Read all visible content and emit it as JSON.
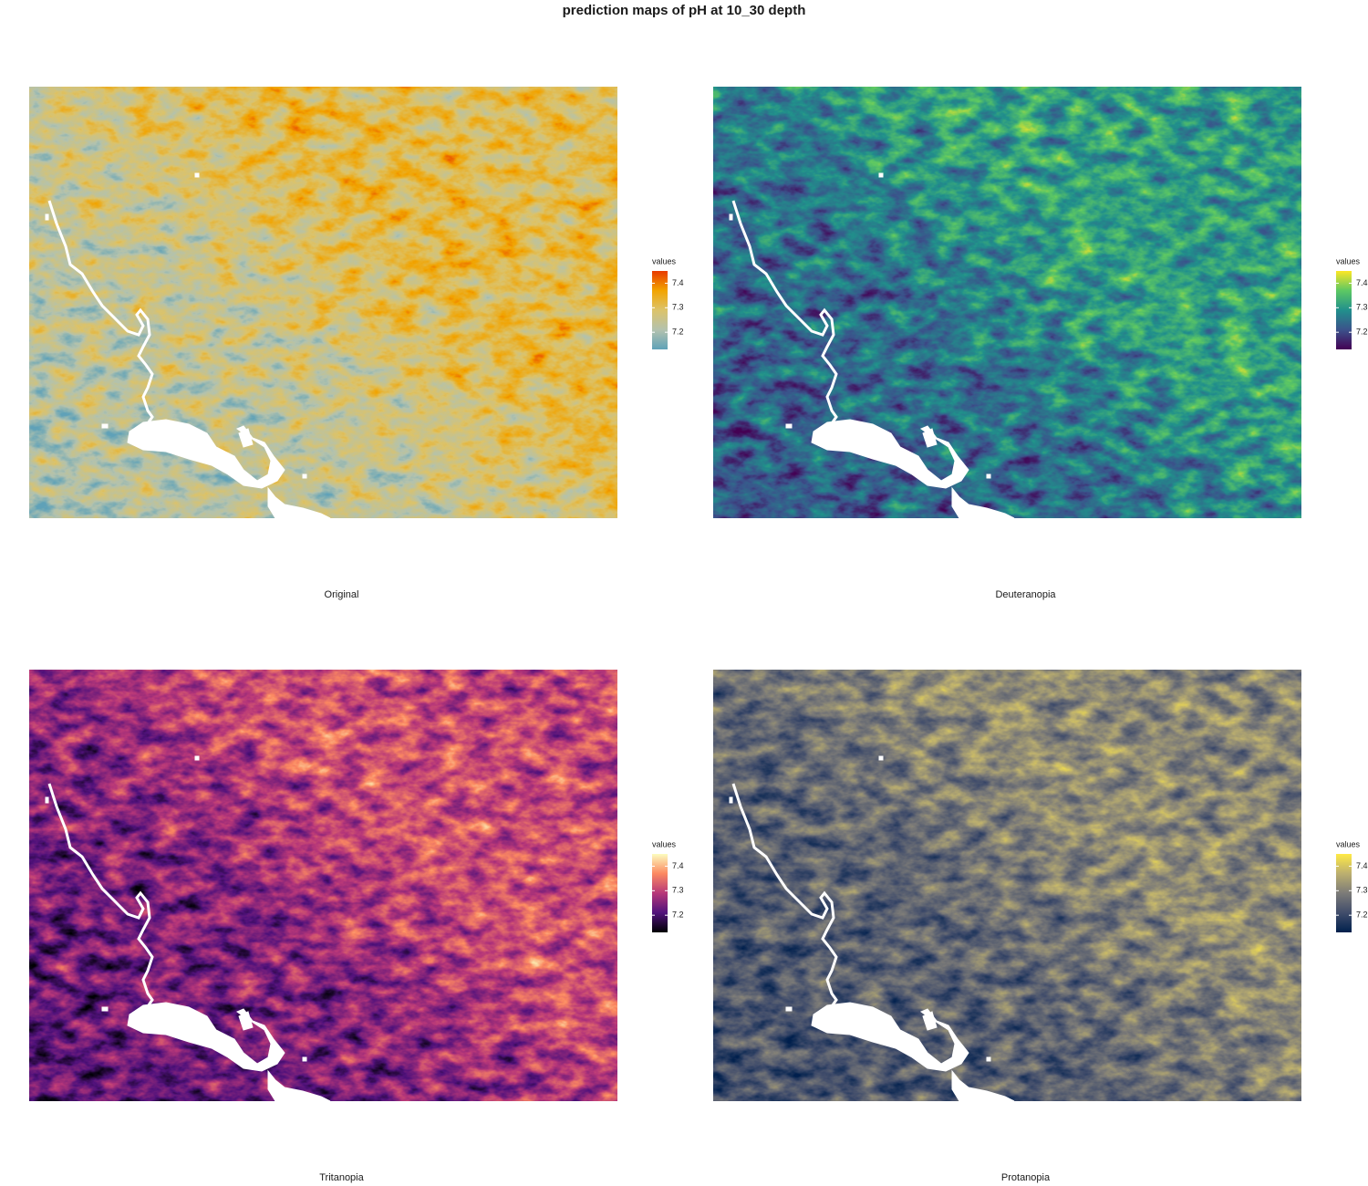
{
  "title": "prediction maps of pH at 10_30 depth",
  "panels": [
    {
      "caption": "Original",
      "legend": {
        "title": "values",
        "lim": [
          7.13,
          7.45
        ],
        "ticks": [
          7.2,
          7.3,
          7.4
        ],
        "colors": [
          "#5fa2b8",
          "#b3c2ae",
          "#dcc36a",
          "#f2a400",
          "#e83a00"
        ]
      }
    },
    {
      "caption": "Deuteranopia",
      "legend": {
        "title": "values",
        "lim": [
          7.13,
          7.45
        ],
        "ticks": [
          7.2,
          7.3,
          7.4
        ],
        "colors": [
          "#440154",
          "#3b528b",
          "#21908c",
          "#5dc863",
          "#fde725"
        ]
      }
    },
    {
      "caption": "Tritanopia",
      "legend": {
        "title": "values",
        "lim": [
          7.13,
          7.45
        ],
        "ticks": [
          7.2,
          7.3,
          7.4
        ],
        "colors": [
          "#000004",
          "#51127c",
          "#b73779",
          "#fc8961",
          "#fcfdbf"
        ]
      }
    },
    {
      "caption": "Protanopia",
      "legend": {
        "title": "values",
        "lim": [
          7.13,
          7.45
        ],
        "ticks": [
          7.2,
          7.3,
          7.4
        ],
        "colors": [
          "#00204d",
          "#414d6b",
          "#7c7b78",
          "#bcaf6f",
          "#ffea46"
        ]
      }
    }
  ]
}
